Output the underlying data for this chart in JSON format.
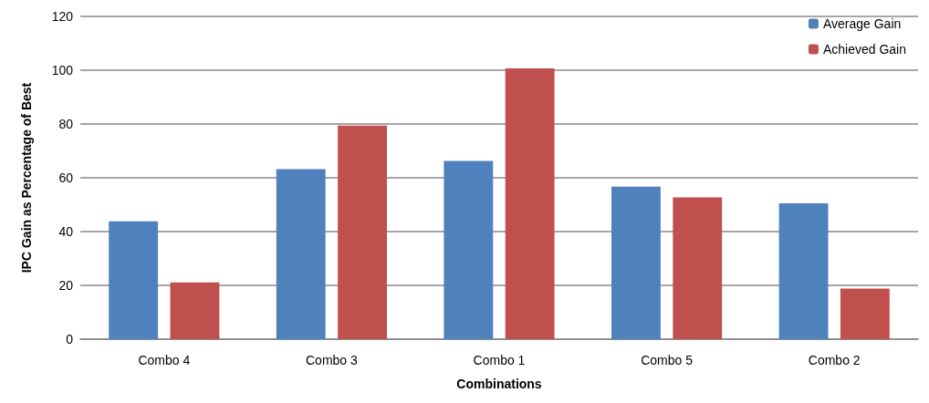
{
  "chart_data": {
    "type": "bar",
    "xlabel": "Combinations",
    "ylabel": "IPC Gain as Percentage of Best",
    "categories": [
      "Combo 4",
      "Combo 3",
      "Combo 1",
      "Combo 5",
      "Combo 2"
    ],
    "series": [
      {
        "name": "Average Gain",
        "color": "#4f81bd",
        "values": [
          43.8,
          63.2,
          66.3,
          56.7,
          50.5
        ]
      },
      {
        "name": "Achieved Gain",
        "color": "#c0504d",
        "values": [
          21.1,
          79.4,
          100.7,
          52.7,
          18.8
        ]
      }
    ],
    "ylim": [
      0,
      120
    ],
    "yticks": [
      0,
      20,
      40,
      60,
      80,
      100,
      120
    ],
    "grid": "y",
    "legend": "top right"
  }
}
